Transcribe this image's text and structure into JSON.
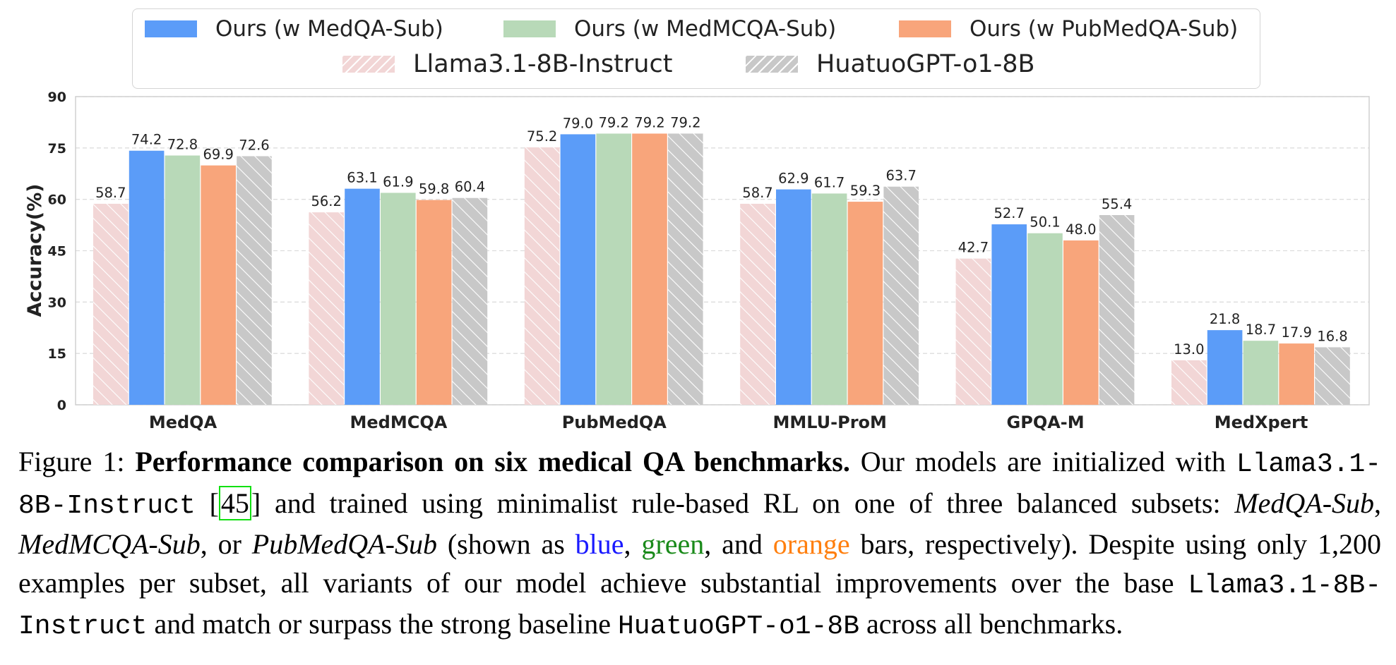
{
  "chart_data": {
    "type": "bar",
    "categories": [
      "MedQA",
      "MedMCQA",
      "PubMedQA",
      "MMLU-ProM",
      "GPQA-M",
      "MedXpert"
    ],
    "ylabel": "Accuracy(%)",
    "ylim": [
      0,
      90
    ],
    "yticks": [
      0,
      15,
      30,
      45,
      60,
      75,
      90
    ],
    "grid": true,
    "legend_position": "top-center",
    "series": [
      {
        "name": "Llama3.1-8B-Instruct",
        "style": "hatched",
        "color": "#f2d6d6",
        "hatch_color": "#ffffff",
        "values": [
          58.7,
          56.2,
          75.2,
          58.7,
          42.7,
          13.0
        ]
      },
      {
        "name": "Ours (w MedQA-Sub)",
        "style": "solid",
        "color": "#5b9cf8",
        "values": [
          74.2,
          63.1,
          79.0,
          62.9,
          52.7,
          21.8
        ]
      },
      {
        "name": "Ours (w MedMCQA-Sub)",
        "style": "solid",
        "color": "#b8d9b8",
        "values": [
          72.8,
          61.9,
          79.2,
          61.7,
          50.1,
          18.7
        ]
      },
      {
        "name": "Ours (w PubMedQA-Sub)",
        "style": "solid",
        "color": "#f8a57b",
        "values": [
          69.9,
          59.8,
          79.2,
          59.3,
          48.0,
          17.9
        ]
      },
      {
        "name": "HuatuoGPT-o1-8B",
        "style": "hatched",
        "color": "#c8c8c8",
        "hatch_color": "#ffffff",
        "values": [
          72.6,
          60.4,
          79.2,
          63.7,
          55.4,
          16.8
        ]
      }
    ],
    "value_labels": [
      [
        "58.7",
        "56.2",
        "75.2",
        "58.7",
        "42.7",
        "13.0"
      ],
      [
        "74.2",
        "63.1",
        "79.0",
        "62.9",
        "52.7",
        "21.8"
      ],
      [
        "72.8",
        "61.9",
        "79.2",
        "61.7",
        "50.1",
        "18.7"
      ],
      [
        "69.9",
        "59.8",
        "79.2",
        "59.3",
        "48.0",
        "17.9"
      ],
      [
        "72.6",
        "60.4",
        "79.2",
        "63.7",
        "55.4",
        "16.8"
      ]
    ]
  },
  "legend": {
    "row1": [
      "Ours (w MedQA-Sub)",
      "Ours (w MedMCQA-Sub)",
      "Ours (w PubMedQA-Sub)"
    ],
    "row2": [
      "Llama3.1-8B-Instruct",
      "HuatuoGPT-o1-8B"
    ]
  },
  "caption": {
    "figure_label": "Figure 1:",
    "title": "Performance comparison on six medical QA benchmarks.",
    "t1": "Our models are initialized with",
    "model_base": "Llama3.1-8B-Instruct",
    "ref_open": "[",
    "ref": "45",
    "ref_close": "]",
    "t2": "and trained using minimalist rule-based RL on one of three balanced subsets:",
    "subset1": "MedQA-Sub",
    "sep1": ",",
    "subset2": "MedMCQA-Sub",
    "sep2": ", or",
    "subset3": "PubMedQA-Sub",
    "t3": "(shown as",
    "c_blue": "blue",
    "sep3": ",",
    "c_green": "green",
    "sep4": ", and",
    "c_orange": "orange",
    "t4": "bars, respectively). Despite using only 1,200 examples per subset, all variants of our model achieve substantial improvements over the base",
    "model_base2": "Llama3.1-8B-Instruct",
    "t5": "and match or surpass the strong baseline",
    "model_baseline": "HuatuoGPT-o1-8B",
    "t6": "across all benchmarks."
  },
  "colors": {
    "grid": "#dddddd",
    "frame": "#d0d0d0",
    "text": "#222222"
  }
}
